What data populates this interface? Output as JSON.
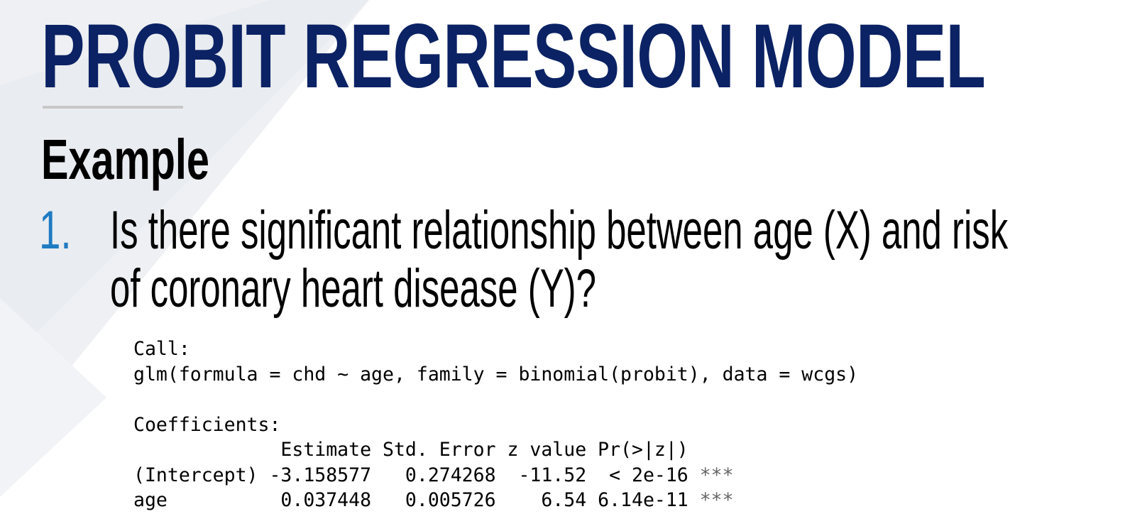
{
  "slide": {
    "title": "PROBIT REGRESSION MODEL",
    "heading": "Example",
    "question_number": "1.",
    "question_line1": "Is there significant relationship between age (X) and risk",
    "question_line2": "of coronary heart disease (Y)?"
  },
  "r_output": {
    "call_label": "Call:",
    "call_formula": "glm(formula = chd ~ age, family = binomial(probit), data = wcgs)",
    "coefficients_label": "Coefficients:",
    "header": "             Estimate Std. Error z value Pr(>|z|)",
    "rows": [
      {
        "text": "(Intercept) -3.158577   0.274268  -11.52  < 2e-16 ",
        "signif": "***"
      },
      {
        "text": "age          0.037448   0.005726    6.54 6.14e-11 ",
        "signif": "***"
      }
    ]
  },
  "colors": {
    "title": "#0b2264",
    "question_number": "#1f7bc2",
    "rule": "#c8c8c8",
    "background_shape": "#eef0f3"
  }
}
